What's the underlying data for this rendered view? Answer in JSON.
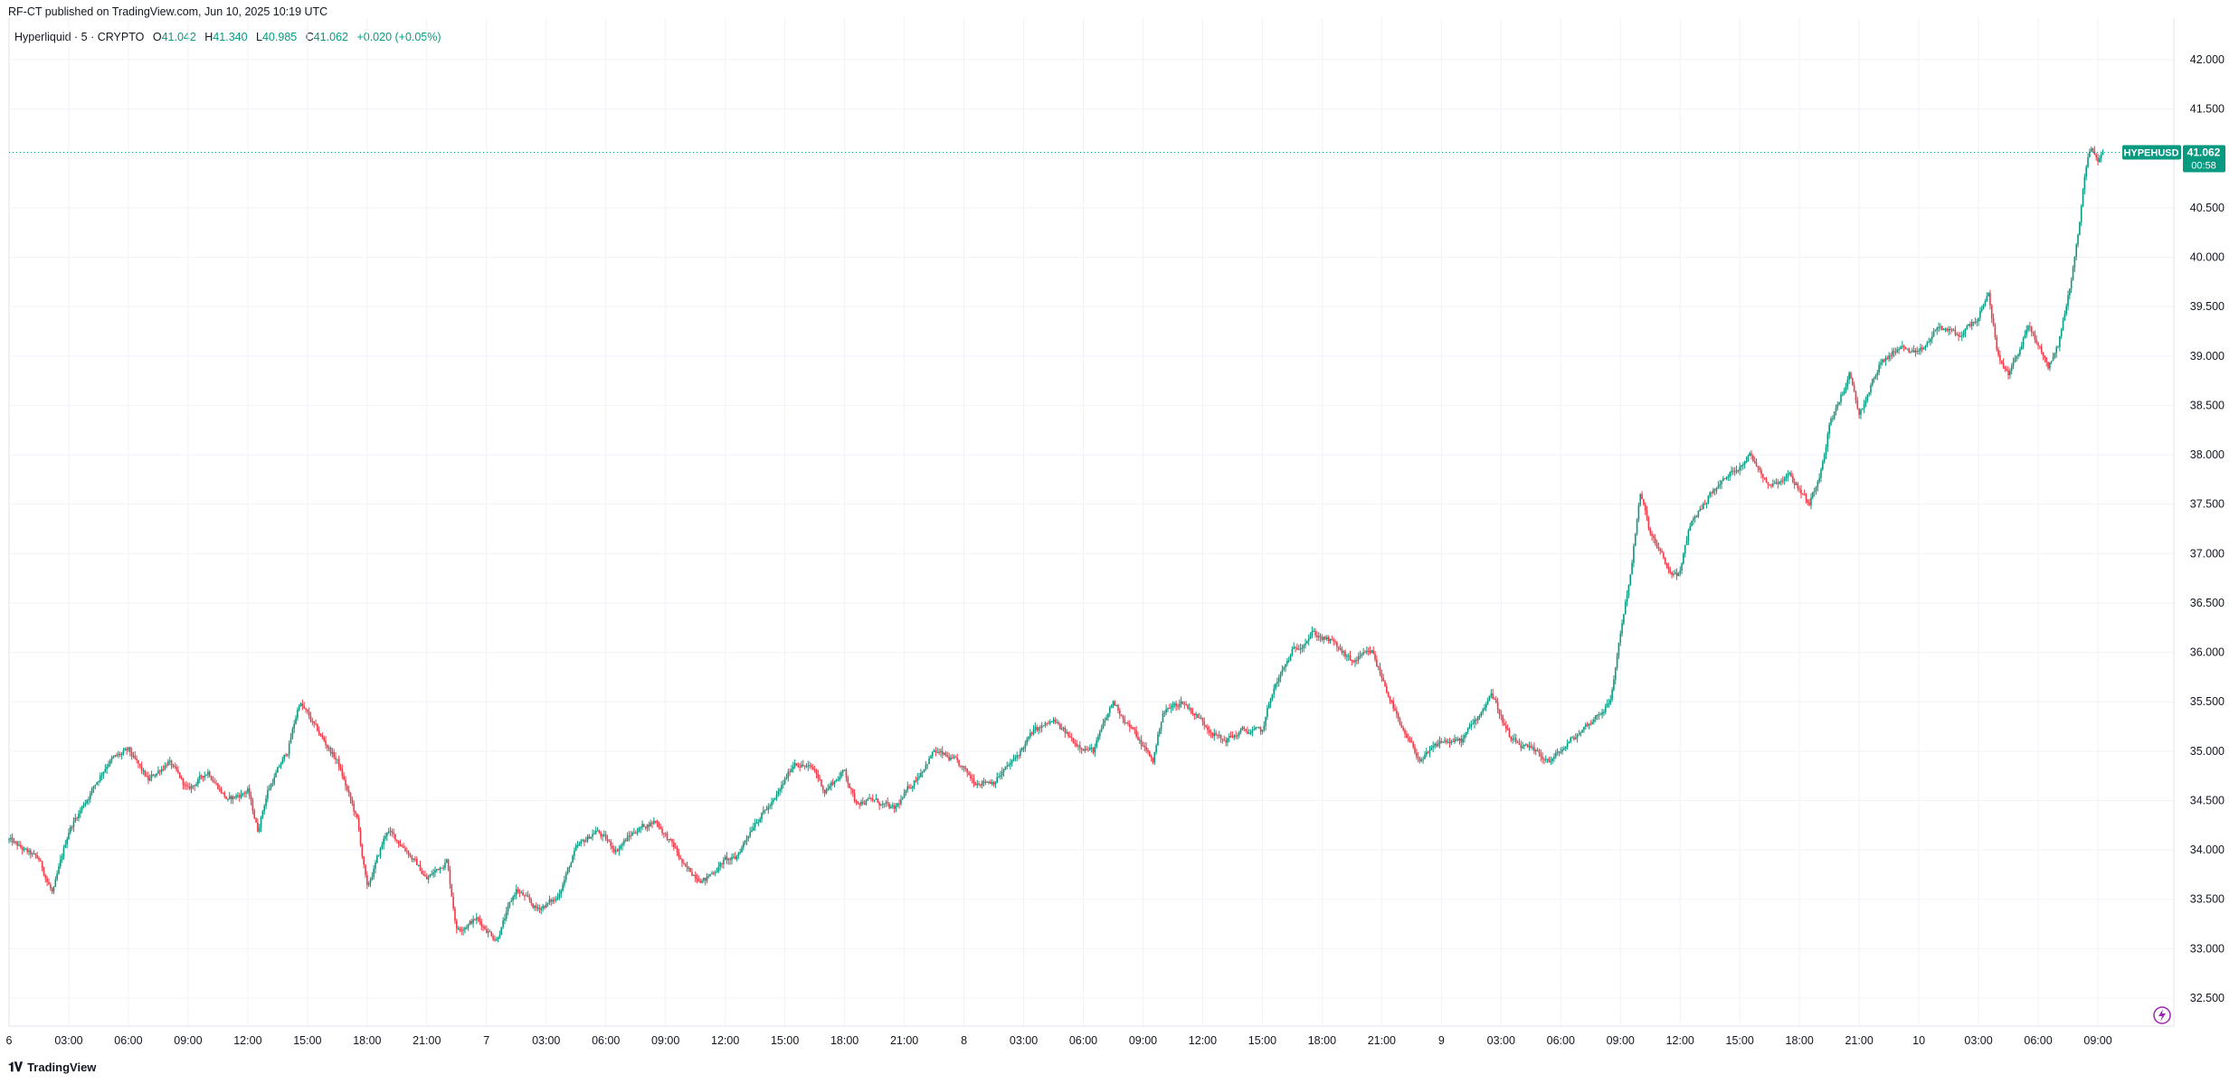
{
  "header": {
    "published": "RF-CT published on TradingView.com, Jun 10, 2025 10:19 UTC"
  },
  "legend": {
    "symbol": "Hyperliquid · 5 · CRYPTO",
    "o_label": "O",
    "o_value": "41.042",
    "h_label": "H",
    "h_value": "41.340",
    "l_label": "L",
    "l_value": "40.985",
    "c_label": "C",
    "c_value": "41.062",
    "change": "+0.020 (+0.05%)"
  },
  "price_tag": {
    "ticker": "HYPEHUSD",
    "price": "41.062",
    "countdown": "00:58"
  },
  "footer": {
    "brand": "TradingView"
  },
  "colors": {
    "up": "#089981",
    "down": "#f23645",
    "grid": "#f0f3fa",
    "axis_text": "#131722",
    "tag": "#089981"
  },
  "icons": {
    "flash": "lightning-icon",
    "logo": "tradingview-logo-icon"
  },
  "chart_data": {
    "type": "candlestick",
    "title": "",
    "xlabel": "",
    "ylabel": "",
    "ylim": [
      32.0,
      42.5
    ],
    "y_ticks": [
      "42.000",
      "41.500",
      "41.000",
      "40.500",
      "40.000",
      "39.500",
      "39.000",
      "38.500",
      "38.000",
      "37.500",
      "37.000",
      "36.500",
      "36.000",
      "35.500",
      "35.000",
      "34.500",
      "34.000",
      "33.500",
      "33.000",
      "32.500"
    ],
    "x_ticks": [
      "6",
      "03:00",
      "06:00",
      "09:00",
      "12:00",
      "15:00",
      "18:00",
      "21:00",
      "7",
      "03:00",
      "06:00",
      "09:00",
      "12:00",
      "15:00",
      "18:00",
      "21:00",
      "8",
      "03:00",
      "06:00",
      "09:00",
      "12:00",
      "15:00",
      "18:00",
      "21:00",
      "9",
      "03:00",
      "06:00",
      "09:00",
      "12:00",
      "15:00",
      "18:00",
      "21:00",
      "10",
      "03:00",
      "06:00",
      "09:00"
    ],
    "x_tick_hours": [
      0,
      3,
      6,
      9,
      12,
      15,
      18,
      21,
      24,
      27,
      30,
      33,
      36,
      39,
      42,
      45,
      48,
      51,
      54,
      57,
      60,
      63,
      66,
      69,
      72,
      75,
      78,
      81,
      84,
      87,
      90,
      93,
      96,
      99,
      102,
      105
    ],
    "x_range_hours": [
      0,
      107
    ],
    "interval_minutes": 5,
    "last_close": 41.062,
    "price_path": [
      [
        0,
        34.1
      ],
      [
        0.7,
        34.0
      ],
      [
        1.5,
        33.9
      ],
      [
        2.2,
        33.55
      ],
      [
        3.0,
        34.2
      ],
      [
        4.0,
        34.55
      ],
      [
        5.0,
        34.9
      ],
      [
        6.0,
        35.0
      ],
      [
        7.0,
        34.7
      ],
      [
        8.0,
        34.9
      ],
      [
        9.0,
        34.6
      ],
      [
        10.0,
        34.8
      ],
      [
        11.0,
        34.5
      ],
      [
        12.0,
        34.6
      ],
      [
        12.5,
        34.2
      ],
      [
        13.0,
        34.6
      ],
      [
        14.0,
        35.0
      ],
      [
        14.6,
        35.5
      ],
      [
        15.5,
        35.2
      ],
      [
        16.5,
        34.9
      ],
      [
        17.5,
        34.3
      ],
      [
        18.0,
        33.6
      ],
      [
        19.0,
        34.2
      ],
      [
        20.0,
        34.0
      ],
      [
        21.0,
        33.7
      ],
      [
        22.0,
        33.9
      ],
      [
        22.5,
        33.2
      ],
      [
        23.5,
        33.3
      ],
      [
        24.5,
        33.1
      ],
      [
        25.5,
        33.6
      ],
      [
        26.5,
        33.4
      ],
      [
        27.5,
        33.5
      ],
      [
        28.5,
        34.0
      ],
      [
        29.5,
        34.2
      ],
      [
        30.5,
        34.0
      ],
      [
        31.5,
        34.2
      ],
      [
        32.5,
        34.3
      ],
      [
        33.5,
        34.0
      ],
      [
        34.0,
        33.8
      ],
      [
        35.0,
        33.7
      ],
      [
        36.0,
        33.9
      ],
      [
        36.5,
        33.9
      ],
      [
        37.5,
        34.3
      ],
      [
        38.5,
        34.5
      ],
      [
        39.5,
        34.9
      ],
      [
        40.5,
        34.8
      ],
      [
        41.0,
        34.6
      ],
      [
        42.0,
        34.8
      ],
      [
        42.5,
        34.5
      ],
      [
        43.5,
        34.5
      ],
      [
        44.5,
        34.4
      ],
      [
        45.5,
        34.7
      ],
      [
        46.5,
        35.0
      ],
      [
        47.5,
        34.9
      ],
      [
        48.5,
        34.7
      ],
      [
        49.5,
        34.7
      ],
      [
        50.5,
        34.9
      ],
      [
        51.5,
        35.2
      ],
      [
        52.5,
        35.3
      ],
      [
        53.5,
        35.1
      ],
      [
        54.5,
        35.0
      ],
      [
        55.5,
        35.5
      ],
      [
        56.5,
        35.2
      ],
      [
        57.5,
        34.9
      ],
      [
        58.0,
        35.4
      ],
      [
        59.0,
        35.5
      ],
      [
        60.0,
        35.3
      ],
      [
        61.0,
        35.1
      ],
      [
        62.0,
        35.2
      ],
      [
        63.0,
        35.2
      ],
      [
        63.5,
        35.6
      ],
      [
        64.5,
        36.0
      ],
      [
        65.5,
        36.2
      ],
      [
        66.5,
        36.1
      ],
      [
        67.5,
        35.9
      ],
      [
        68.5,
        36.0
      ],
      [
        69.5,
        35.5
      ],
      [
        70.0,
        35.2
      ],
      [
        71.0,
        34.9
      ],
      [
        72.0,
        35.1
      ],
      [
        73.0,
        35.1
      ],
      [
        74.0,
        35.4
      ],
      [
        74.5,
        35.6
      ],
      [
        75.5,
        35.1
      ],
      [
        76.5,
        35.0
      ],
      [
        77.5,
        34.9
      ],
      [
        78.5,
        35.1
      ],
      [
        79.5,
        35.3
      ],
      [
        80.0,
        35.4
      ],
      [
        80.5,
        35.5
      ],
      [
        81.0,
        36.2
      ],
      [
        81.5,
        36.8
      ],
      [
        82.0,
        37.6
      ],
      [
        82.5,
        37.2
      ],
      [
        83.5,
        36.8
      ],
      [
        84.0,
        36.8
      ],
      [
        84.5,
        37.3
      ],
      [
        85.5,
        37.6
      ],
      [
        86.5,
        37.8
      ],
      [
        87.5,
        38.0
      ],
      [
        88.5,
        37.7
      ],
      [
        89.5,
        37.8
      ],
      [
        90.5,
        37.5
      ],
      [
        91.0,
        37.8
      ],
      [
        91.5,
        38.3
      ],
      [
        92.5,
        38.8
      ],
      [
        93.0,
        38.4
      ],
      [
        94.0,
        38.9
      ],
      [
        95.0,
        39.1
      ],
      [
        96.0,
        39.0
      ],
      [
        97.0,
        39.3
      ],
      [
        98.0,
        39.2
      ],
      [
        99.0,
        39.4
      ],
      [
        99.5,
        39.6
      ],
      [
        100.0,
        39.0
      ],
      [
        100.5,
        38.8
      ],
      [
        101.5,
        39.3
      ],
      [
        102.0,
        39.1
      ],
      [
        102.5,
        38.9
      ],
      [
        103.0,
        39.1
      ],
      [
        103.5,
        39.6
      ],
      [
        104.0,
        40.2
      ],
      [
        104.3,
        40.8
      ],
      [
        104.6,
        41.1
      ],
      [
        105.0,
        41.0
      ],
      [
        105.3,
        41.06
      ]
    ]
  }
}
